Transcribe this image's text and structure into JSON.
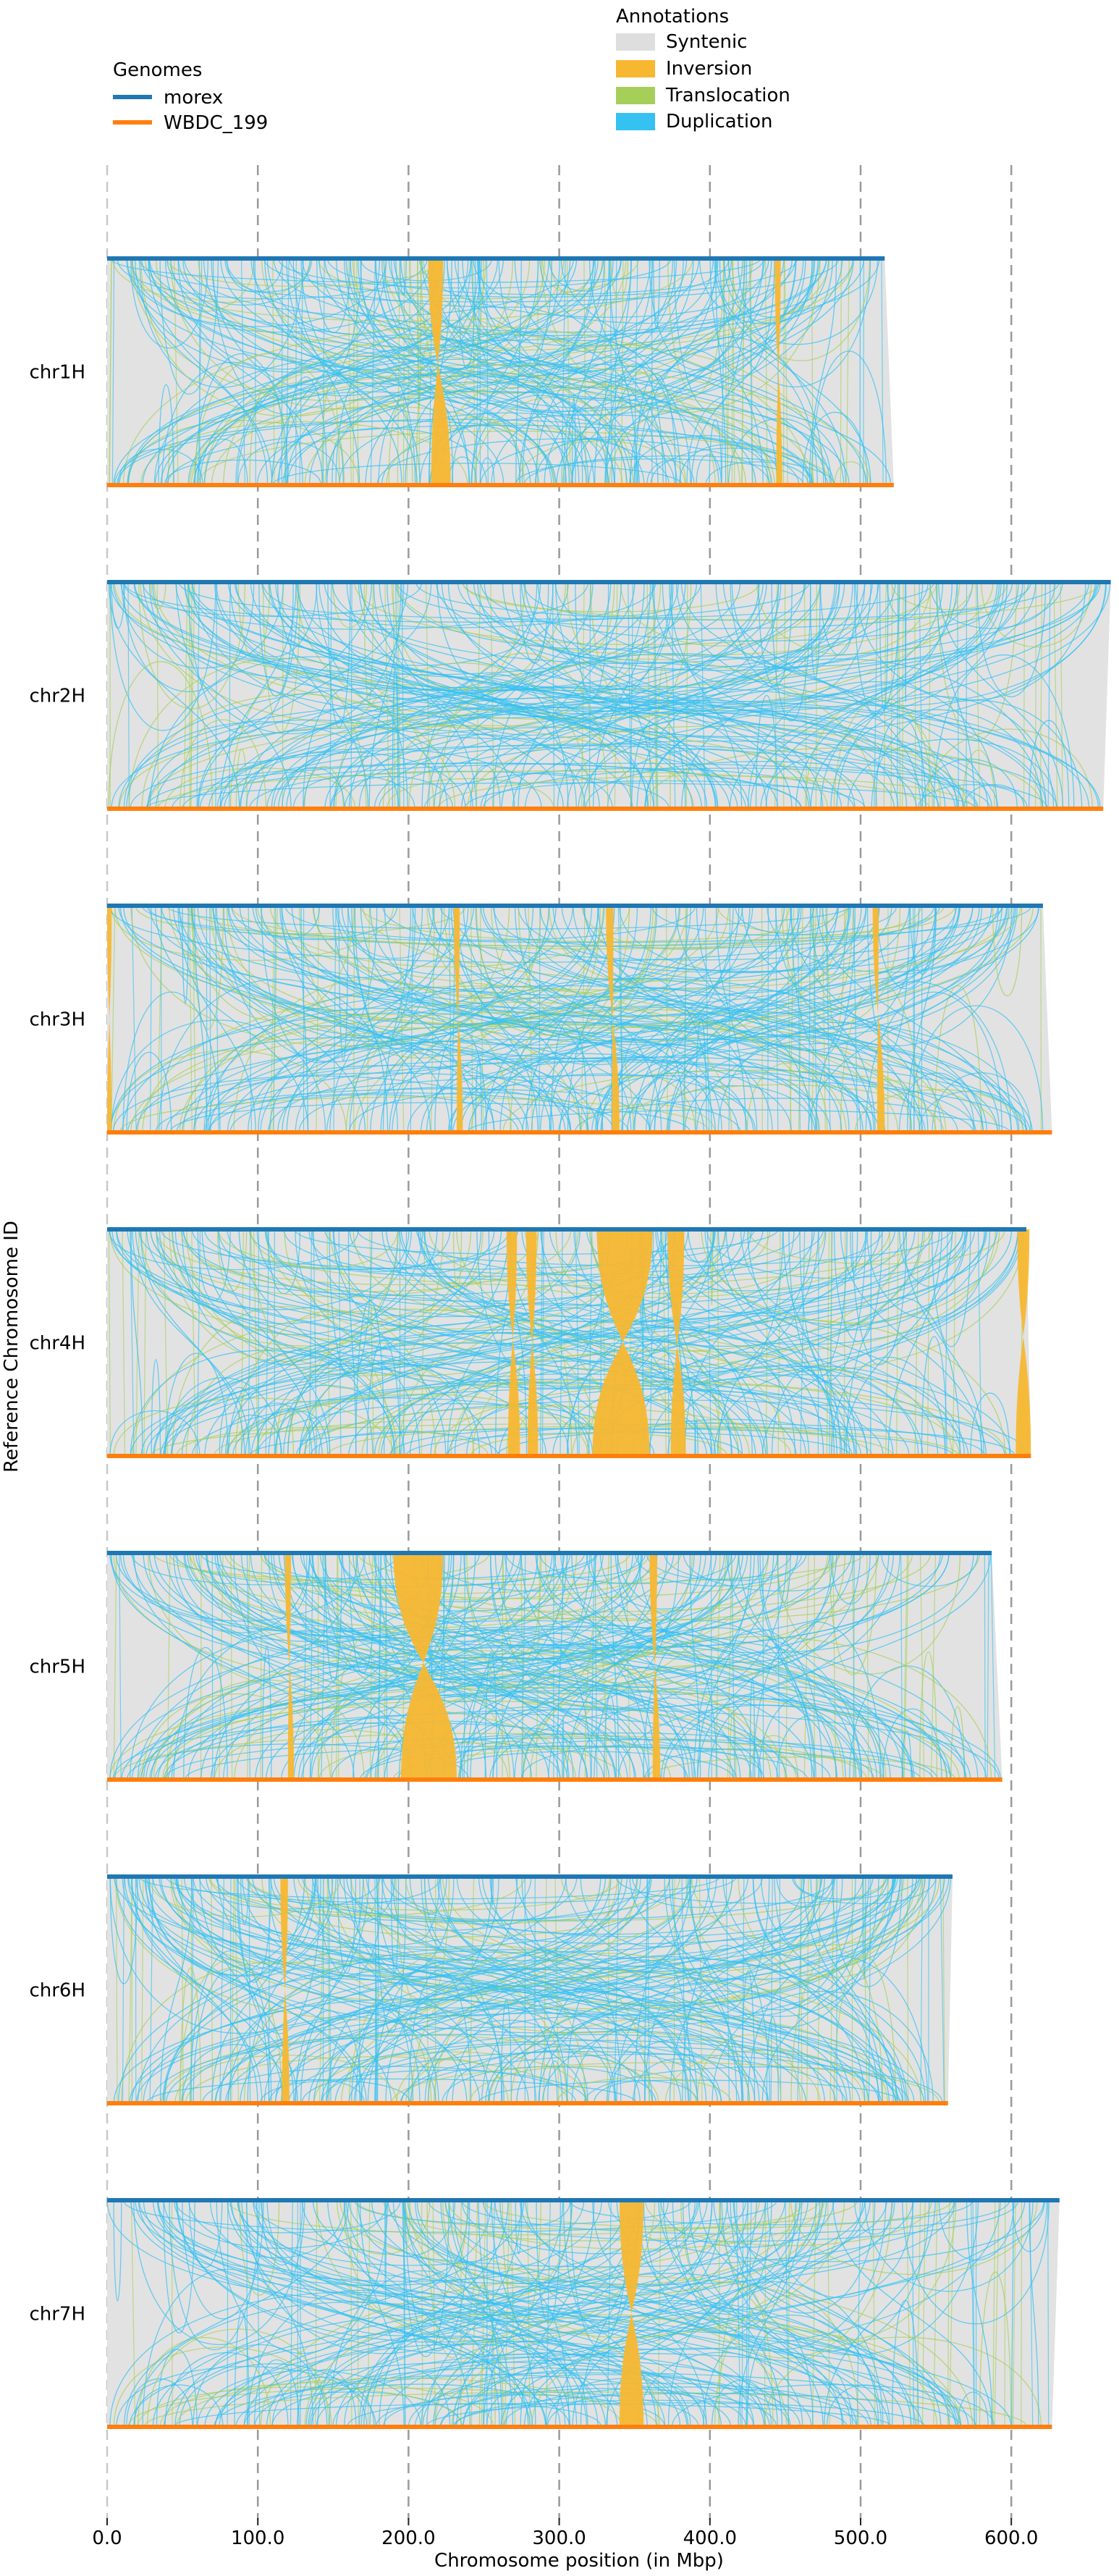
{
  "chart_data": {
    "type": "synteny",
    "xlabel": "Chromosome position (in Mbp)",
    "ylabel": "Reference Chromosome ID",
    "x_ticks": [
      0,
      100,
      200,
      300,
      400,
      500,
      600
    ],
    "x_tick_labels": [
      "0.0",
      "100.0",
      "200.0",
      "300.0",
      "400.0",
      "500.0",
      "600.0"
    ],
    "xlim": [
      0,
      670
    ],
    "grid": "vertical dashed",
    "genomes_legend": {
      "title": "Genomes",
      "placement": "top-left",
      "items": [
        {
          "name": "morex",
          "color": "#1f77b4"
        },
        {
          "name": "WBDC_199",
          "color": "#ff7f0e"
        }
      ]
    },
    "annotations_legend": {
      "title": "Annotations",
      "placement": "top-center",
      "items": [
        {
          "name": "Syntenic",
          "color": "#dedede"
        },
        {
          "name": "Inversion",
          "color": "#f7b731"
        },
        {
          "name": "Translocation",
          "color": "#a6cf5a"
        },
        {
          "name": "Duplication",
          "color": "#35c1f2"
        }
      ]
    },
    "chromosomes": [
      {
        "name": "chr1H",
        "ref_length": 516,
        "query_length": 522,
        "inversions": [
          [
            213,
            223,
            215,
            228
          ],
          [
            443,
            447,
            444,
            448
          ]
        ]
      },
      {
        "name": "chr2H",
        "ref_length": 666,
        "query_length": 661,
        "inversions": []
      },
      {
        "name": "chr3H",
        "ref_length": 621,
        "query_length": 627,
        "inversions": [
          [
            230,
            234,
            232,
            236
          ],
          [
            331,
            336,
            335,
            340
          ],
          [
            508,
            512,
            511,
            516
          ],
          [
            0,
            3,
            0,
            3
          ]
        ]
      },
      {
        "name": "chr4H",
        "ref_length": 610,
        "query_length": 613,
        "inversions": [
          [
            325,
            362,
            322,
            360
          ],
          [
            372,
            383,
            374,
            384
          ],
          [
            265,
            272,
            266,
            274
          ],
          [
            278,
            285,
            279,
            286
          ],
          [
            604,
            612,
            603,
            613
          ]
        ]
      },
      {
        "name": "chr5H",
        "ref_length": 587,
        "query_length": 594,
        "inversions": [
          [
            190,
            223,
            195,
            232
          ],
          [
            360,
            365,
            362,
            367
          ],
          [
            118,
            122,
            120,
            124
          ]
        ]
      },
      {
        "name": "chr6H",
        "ref_length": 561,
        "query_length": 558,
        "inversions": [
          [
            115,
            120,
            116,
            121
          ]
        ]
      },
      {
        "name": "chr7H",
        "ref_length": 632,
        "query_length": 627,
        "inversions": [
          [
            340,
            356,
            340,
            356
          ]
        ]
      }
    ]
  }
}
